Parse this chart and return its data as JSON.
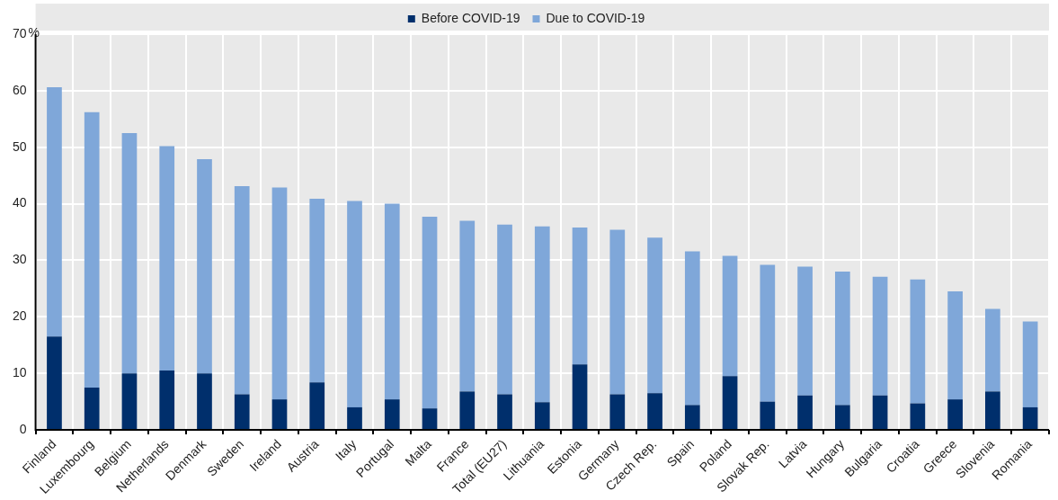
{
  "chart_data": {
    "type": "bar",
    "stacked": true,
    "ylabel": "%",
    "categories": [
      "Finland",
      "Luxembourg",
      "Belgium",
      "Netherlands",
      "Denmark",
      "Sweden",
      "Ireland",
      "Austria",
      "Italy",
      "Portugal",
      "Malta",
      "France",
      "Total (EU27)",
      "Lithuania",
      "Estonia",
      "Germany",
      "Czech Rep.",
      "Spain",
      "Poland",
      "Slovak Rep.",
      "Latvia",
      "Hungary",
      "Bulgaria",
      "Croatia",
      "Greece",
      "Slovenia",
      "Romania"
    ],
    "series": [
      {
        "name": "Before COVID-19",
        "color": "#002f6c",
        "values": [
          16.5,
          7.5,
          10.0,
          10.5,
          10.0,
          6.3,
          5.4,
          8.4,
          4.0,
          5.4,
          3.8,
          6.8,
          6.3,
          4.9,
          11.6,
          6.3,
          6.5,
          4.4,
          9.5,
          5.0,
          6.1,
          4.4,
          6.1,
          4.7,
          5.4,
          6.8,
          4.0
        ]
      },
      {
        "name": "Due to COVID-19",
        "color": "#7fa7d9",
        "values": [
          44.1,
          48.7,
          42.5,
          39.7,
          37.9,
          36.8,
          37.5,
          32.5,
          36.5,
          34.6,
          33.9,
          30.2,
          30.0,
          31.1,
          24.2,
          29.1,
          27.5,
          27.2,
          21.3,
          24.2,
          22.8,
          23.6,
          21.0,
          21.9,
          19.1,
          14.6,
          15.2
        ]
      }
    ],
    "ylim": [
      0,
      70
    ],
    "yticks": [
      0,
      10,
      20,
      30,
      40,
      50,
      60,
      70
    ],
    "grid": true,
    "legend": "top"
  }
}
